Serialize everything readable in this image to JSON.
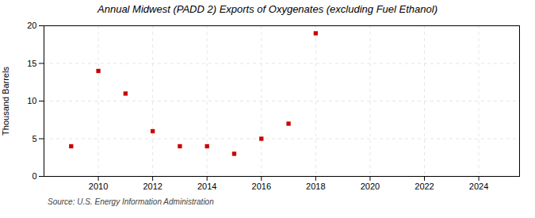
{
  "chart_data": {
    "type": "scatter",
    "title": "Annual Midwest (PADD 2) Exports of Oxygenates (excluding Fuel Ethanol)",
    "ylabel": "Thousand Barrels",
    "annotations": [
      "Source: U.S. Energy Information Administration"
    ],
    "x": [
      2009,
      2010,
      2011,
      2012,
      2013,
      2014,
      2015,
      2016,
      2017,
      2018
    ],
    "values": [
      4.0,
      14.0,
      11.0,
      6.0,
      4.0,
      4.0,
      3.0,
      5.0,
      7.0,
      19.0
    ],
    "color": "#cc0000",
    "marker": "square",
    "xlim": [
      2008,
      2025.5
    ],
    "xticks": [
      2010,
      2012,
      2014,
      2016,
      2018,
      2020,
      2022,
      2024
    ],
    "ylim": [
      0,
      20
    ],
    "yticks": [
      0,
      5,
      10,
      15,
      20
    ],
    "grid": true
  }
}
